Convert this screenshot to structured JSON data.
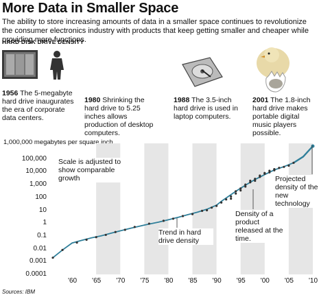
{
  "header": {
    "title": "More Data in Smaller Space",
    "intro": "The ability to store increasing amounts of data in a smaller space continues to revolutionize the consumer electronics industry with products that keep getting smaller and cheaper while providing more functions.",
    "section_label": "HARD DISK DRIVE DENSITY"
  },
  "milestones": [
    {
      "year": "1956",
      "text": "The 5-megabyte hard drive inaugurates the era of corporate data centers.",
      "icon": "mainframe-and-person-image"
    },
    {
      "year": "1980",
      "text": "Shrinking the hard drive to 5.25 inches allows production of desktop computers.",
      "icon": ""
    },
    {
      "year": "1988",
      "text": "The 3.5-inch hard drive is used in laptop computers.",
      "icon": "hard-drive-image"
    },
    {
      "year": "2001",
      "text": "The 1.8-inch hard drive makes portable digital music players possible.",
      "icon": "chick-hatching-from-egg-image"
    }
  ],
  "chart_data": {
    "type": "line",
    "title": "",
    "xlabel": "",
    "ylabel": "1,000,000 megabytes per square inch",
    "yscale": "log",
    "ylim": [
      0.0001,
      1000000
    ],
    "xlim": [
      1955,
      2011
    ],
    "y_ticks": [
      "100,000",
      "10,000",
      "1,000",
      "100",
      "10",
      "1",
      "0.1",
      "0.01",
      "0.001",
      "0.0001"
    ],
    "x_ticks": [
      "'60",
      "'65",
      "'70",
      "'75",
      "'80",
      "'85",
      "'90",
      "'95",
      "'00",
      "'05",
      "'10"
    ],
    "x_tick_values": [
      1960,
      1965,
      1970,
      1975,
      1980,
      1985,
      1990,
      1995,
      2000,
      2005,
      2010
    ],
    "series": [
      {
        "name": "Trend in hard drive density",
        "x": [
          1956,
          1957,
          1958,
          1960,
          1962,
          1964,
          1966,
          1968,
          1970,
          1972,
          1975,
          1978,
          1980,
          1982,
          1984,
          1986,
          1988,
          1990,
          1991,
          1992,
          1994,
          1996,
          1998,
          2000,
          2002,
          2004,
          2006
        ],
        "y": [
          0.002,
          0.004,
          0.008,
          0.028,
          0.045,
          0.07,
          0.1,
          0.16,
          0.25,
          0.38,
          0.7,
          1.2,
          1.8,
          2.8,
          4.5,
          7,
          12,
          25,
          50,
          90,
          300,
          900,
          2500,
          6000,
          14000,
          25000,
          50000
        ]
      },
      {
        "name": "Projected density of the new technology",
        "x": [
          2006,
          2008,
          2010
        ],
        "y": [
          50000,
          150000,
          1000000
        ]
      }
    ],
    "points": {
      "x": [
        1956,
        1958,
        1961,
        1963,
        1965,
        1967,
        1969,
        1971,
        1973,
        1976,
        1979,
        1981,
        1983,
        1985,
        1987,
        1988,
        1989,
        1990,
        1991,
        1992,
        1993,
        1993,
        1994,
        1994,
        1995,
        1995,
        1996,
        1996,
        1997,
        1997,
        1998,
        1998,
        1999,
        1999,
        2000,
        2000,
        2001,
        2001,
        2002,
        2002,
        2003,
        2004,
        2005,
        2006
      ],
      "y": [
        0.002,
        0.008,
        0.03,
        0.05,
        0.08,
        0.12,
        0.2,
        0.3,
        0.5,
        0.9,
        1.5,
        2.2,
        3.5,
        5,
        9,
        10,
        16,
        22,
        40,
        70,
        120,
        80,
        300,
        200,
        500,
        350,
        1000,
        700,
        1500,
        2000,
        2800,
        2000,
        4000,
        5000,
        7000,
        8000,
        9000,
        12000,
        13000,
        16000,
        20000,
        24000,
        30000,
        50000
      ]
    },
    "grid": "alternating vertical bands",
    "annotations": [
      "Scale is adjusted to show comparable growth",
      "Trend in hard drive density",
      "Density of a product released at the time.",
      "Projected density of the new technology"
    ],
    "colors": {
      "line": "#2f7f9a",
      "points": "#333333",
      "band": "#e6e6e6"
    }
  },
  "source": "Sources: IBM"
}
